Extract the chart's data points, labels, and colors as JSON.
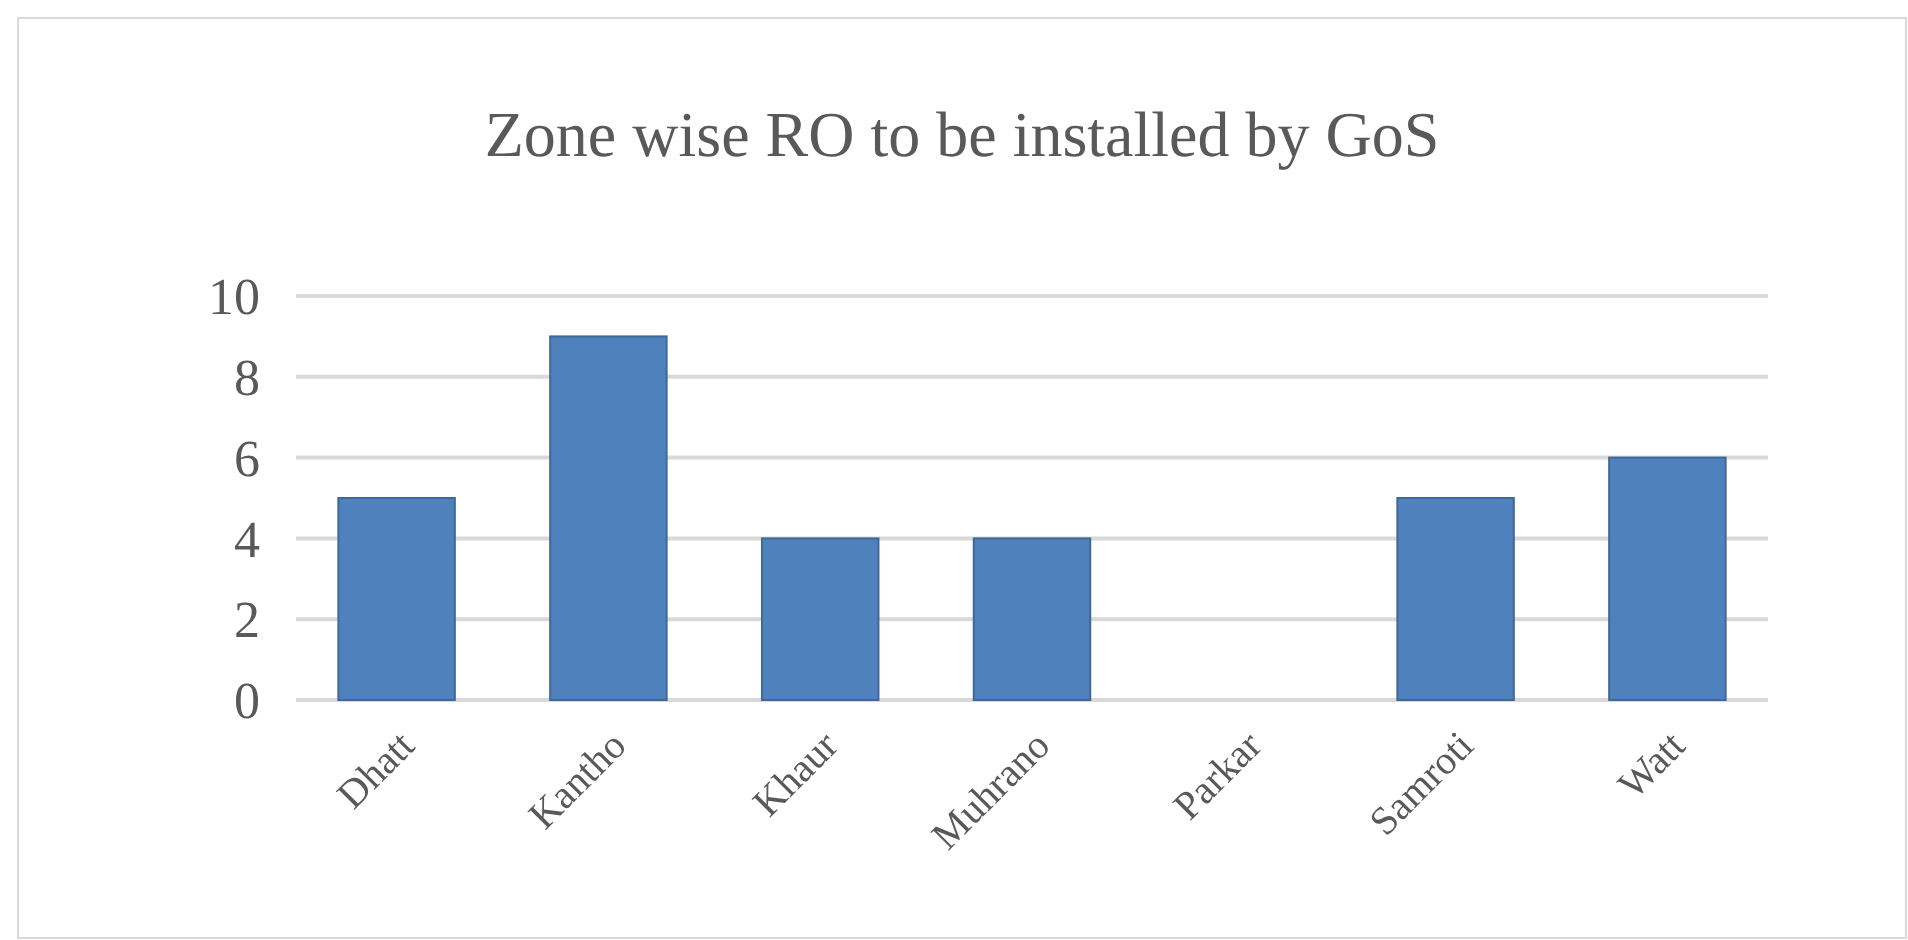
{
  "chart_data": {
    "type": "bar",
    "title": "Zone wise RO to be installed by GoS",
    "categories": [
      "Dhatt",
      "Kantho",
      "Khaur",
      "Muhrano",
      "Parkar",
      "Samroti",
      "Watt"
    ],
    "values": [
      5,
      9,
      4,
      4,
      0,
      5,
      6
    ],
    "color": "#4f81bd",
    "ylim": [
      0,
      10
    ],
    "yticks": [
      0,
      2,
      4,
      6,
      8,
      10
    ],
    "grid": "y"
  }
}
